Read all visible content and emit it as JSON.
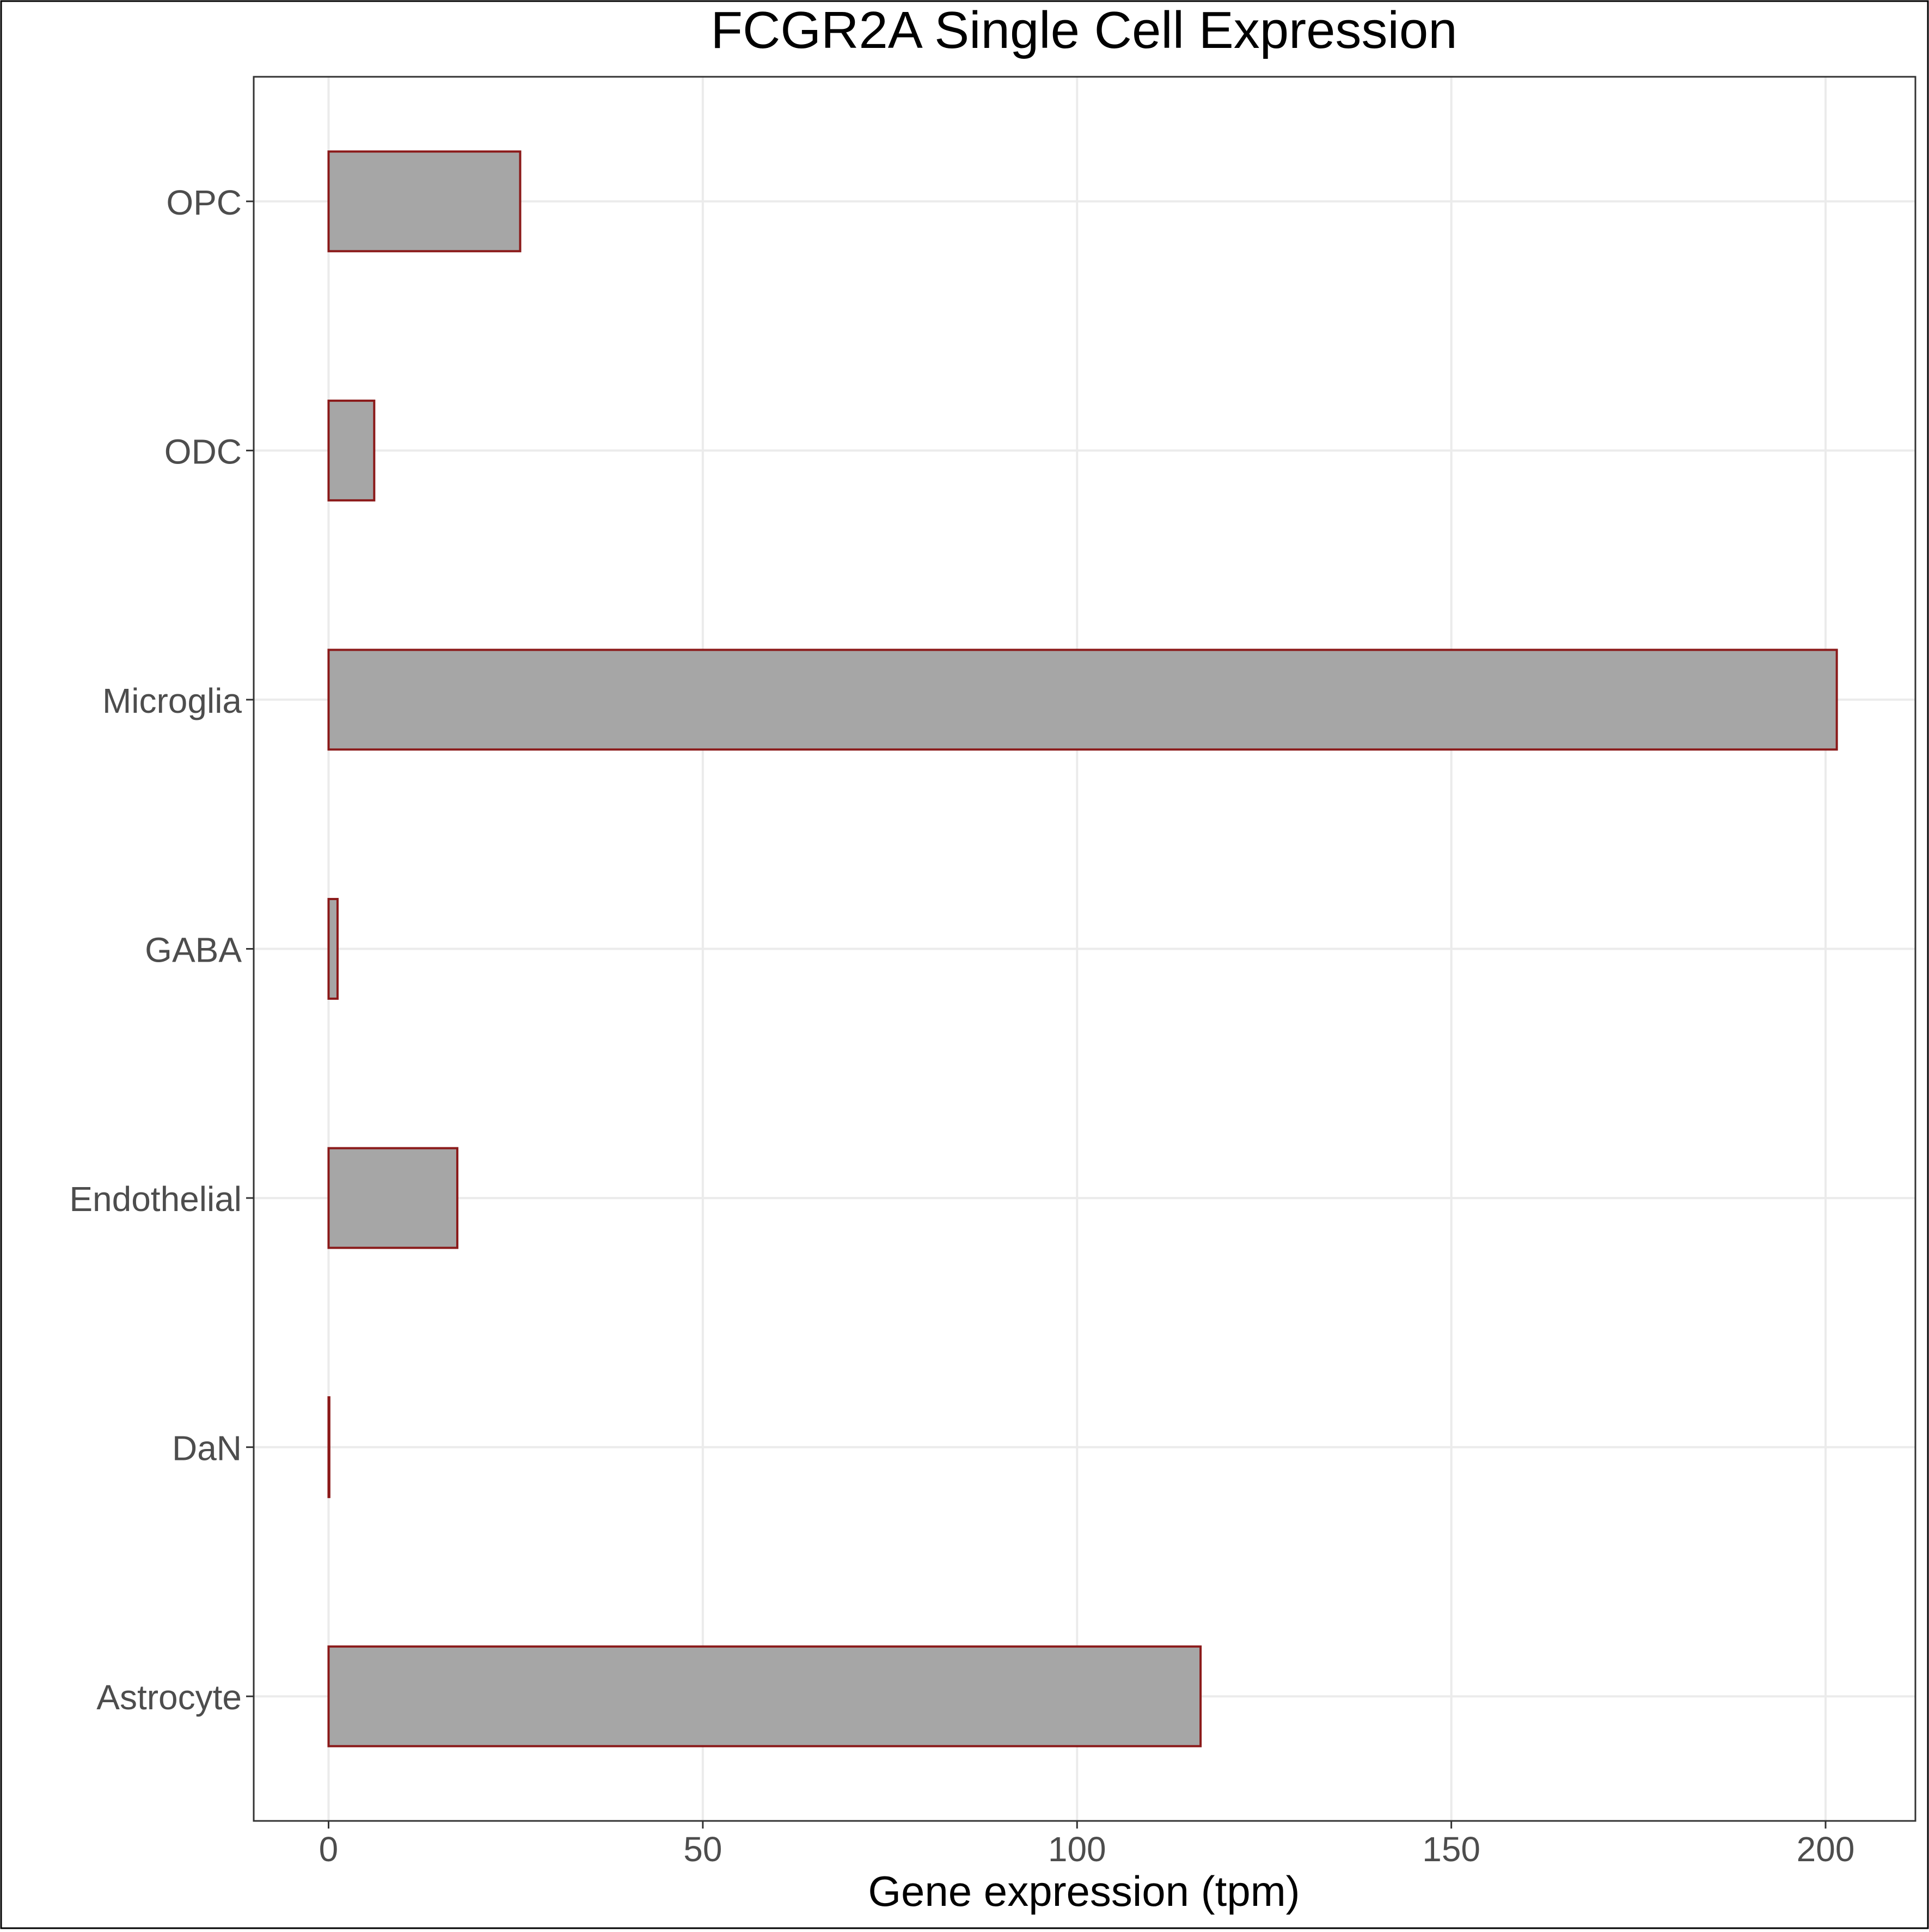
{
  "chart_data": {
    "type": "bar",
    "orientation": "horizontal",
    "title": "FCGR2A Single Cell Expression",
    "xlabel": "Gene expression (tpm)",
    "ylabel": "",
    "categories": [
      "Astrocyte",
      "DaN",
      "Endothelial",
      "GABA",
      "Microglia",
      "ODC",
      "OPC"
    ],
    "values": [
      116.5,
      0.1,
      17.2,
      1.2,
      201.5,
      6.1,
      25.6
    ],
    "xlim": [
      -10,
      212
    ],
    "xticks": [
      0,
      50,
      100,
      150,
      200
    ],
    "grid": true,
    "legend": "none",
    "colors": {
      "bar_fill": "#a6a6a6",
      "bar_stroke": "#8b1a1a",
      "grid": "#ebebeb",
      "panel_border": "#333333",
      "tick_label": "#4d4d4d",
      "text": "#000000"
    }
  }
}
